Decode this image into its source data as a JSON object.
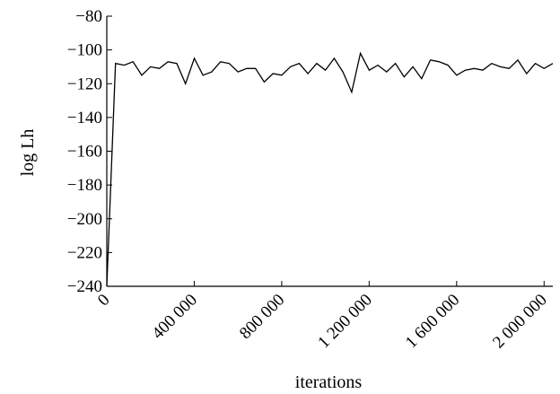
{
  "chart_data": {
    "type": "line",
    "title": "",
    "xlabel": "iterations",
    "ylabel": "log Lh",
    "xlim": [
      0,
      2040000
    ],
    "ylim": [
      -240,
      -80
    ],
    "x_ticks": [
      0,
      400000,
      800000,
      1200000,
      1600000,
      2000000
    ],
    "x_tick_labels": [
      "0",
      "400 000",
      "800 000",
      "1 200 000",
      "1 600 000",
      "2 000 000"
    ],
    "y_ticks": [
      -80,
      -100,
      -120,
      -140,
      -160,
      -180,
      -200,
      -220,
      -240
    ],
    "y_tick_labels": [
      "−80",
      "−100",
      "−120",
      "−140",
      "−160",
      "−180",
      "−200",
      "−220",
      "−240"
    ],
    "grid": false,
    "legend": "none",
    "line_color": "#000000",
    "series": [
      {
        "x": [
          0,
          40000,
          80000,
          120000,
          160000,
          200000,
          240000,
          280000,
          320000,
          360000,
          400000,
          440000,
          480000,
          520000,
          560000,
          600000,
          640000,
          680000,
          720000,
          760000,
          800000,
          840000,
          880000,
          920000,
          960000,
          1000000,
          1040000,
          1080000,
          1120000,
          1160000,
          1200000,
          1240000,
          1280000,
          1320000,
          1360000,
          1400000,
          1440000,
          1480000,
          1520000,
          1560000,
          1600000,
          1640000,
          1680000,
          1720000,
          1760000,
          1800000,
          1840000,
          1880000,
          1920000,
          1960000,
          2000000,
          2040000
        ],
        "y": [
          -240,
          -108,
          -109,
          -107,
          -115,
          -110,
          -111,
          -107,
          -108,
          -120,
          -105,
          -115,
          -113,
          -107,
          -108,
          -113,
          -111,
          -111,
          -119,
          -114,
          -115,
          -110,
          -108,
          -114,
          -108,
          -112,
          -105,
          -113,
          -125,
          -102,
          -112,
          -109,
          -113,
          -108,
          -116,
          -110,
          -117,
          -106,
          -107,
          -109,
          -115,
          -112,
          -111,
          -112,
          -108,
          -110,
          -111,
          -106,
          -114,
          -108,
          -111,
          -108
        ]
      }
    ]
  }
}
